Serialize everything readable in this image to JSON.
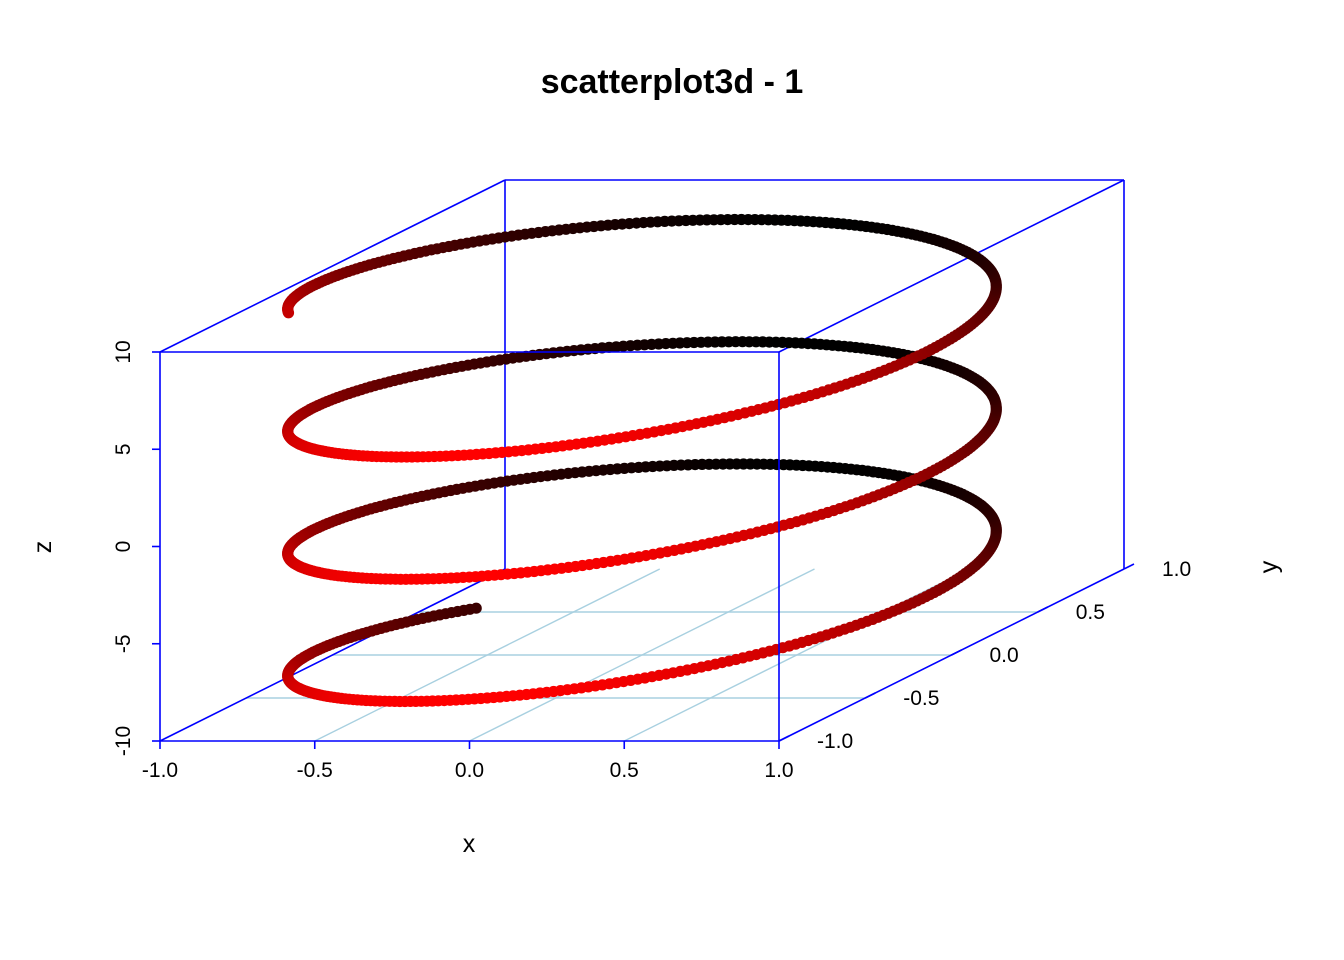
{
  "chart_data": {
    "type": "scatter",
    "title": "scatterplot3d - 1",
    "xlabel": "x",
    "ylabel": "y",
    "zlabel": "z",
    "xlim": [
      -1.0,
      1.0
    ],
    "ylim": [
      -1.0,
      1.0
    ],
    "zlim": [
      -10,
      10
    ],
    "x_ticks": [
      "-1.0",
      "-0.5",
      "0.0",
      "0.5",
      "1.0"
    ],
    "y_ticks": [
      "-1.0",
      "-0.5",
      "0.0",
      "0.5",
      "1.0"
    ],
    "z_ticks": [
      "-10",
      "-5",
      "0",
      "5",
      "10"
    ],
    "series": [
      {
        "equation": "x = cos(t), y = sin(t), z = t",
        "t_range": [
          -10,
          10
        ],
        "point_count": 1000,
        "color_gradient": [
          "#000000",
          "#ff0000"
        ]
      }
    ],
    "box_color": "#0000ff",
    "grid_color": "#a8d0e0",
    "grid": true,
    "angle_degrees": 40
  }
}
